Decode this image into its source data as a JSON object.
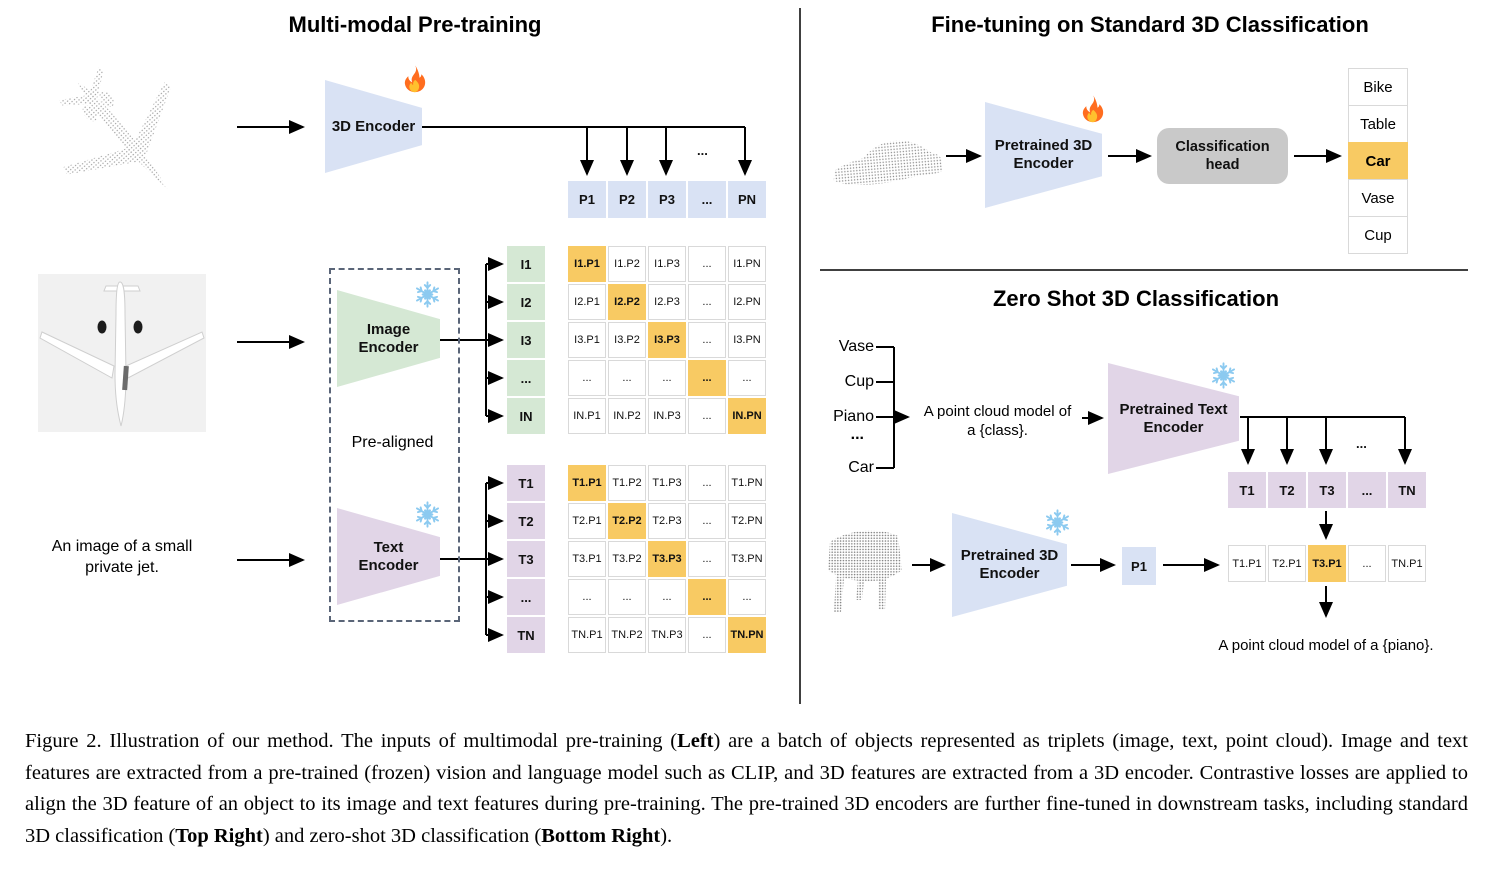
{
  "colors": {
    "blue": "#d9e2f4",
    "green": "#d5e8d4",
    "purple": "#e1d5e7",
    "orange": "#f8ca63",
    "head_gray": "#c9c9c9",
    "cell_border": "#d9d9d9",
    "fire": "#ff6d1f",
    "snowflake": "#8ccaf0",
    "line": "#000000"
  },
  "icons": {
    "fire": "fire-icon",
    "snowflake": "snowflake-icon"
  },
  "left": {
    "title": "Multi-modal Pre-training",
    "encoder_3d": [
      "3D Encoder"
    ],
    "image_encoder": [
      "Image",
      "Encoder"
    ],
    "text_encoder": [
      "Text",
      "Encoder"
    ],
    "prealigned": "Pre-aligned",
    "jet_caption": [
      "An image of a small",
      "private jet."
    ],
    "p_row": [
      "P1",
      "P2",
      "P3",
      "...",
      "PN"
    ],
    "i_col": [
      "I1",
      "I2",
      "I3",
      "...",
      "IN"
    ],
    "t_col": [
      "T1",
      "T2",
      "T3",
      "...",
      "TN"
    ],
    "i_matrix": [
      [
        "I1.P1",
        "I1.P2",
        "I1.P3",
        "...",
        "I1.PN"
      ],
      [
        "I2.P1",
        "I2.P2",
        "I2.P3",
        "...",
        "I2.PN"
      ],
      [
        "I3.P1",
        "I3.P2",
        "I3.P3",
        "...",
        "I3.PN"
      ],
      [
        "...",
        "...",
        "...",
        "...",
        "..."
      ],
      [
        "IN.P1",
        "IN.P2",
        "IN.P3",
        "...",
        "IN.PN"
      ]
    ],
    "t_matrix": [
      [
        "T1.P1",
        "T1.P2",
        "T1.P3",
        "...",
        "T1.PN"
      ],
      [
        "T2.P1",
        "T2.P2",
        "T2.P3",
        "...",
        "T2.PN"
      ],
      [
        "T3.P1",
        "T3.P2",
        "T3.P3",
        "...",
        "T3.PN"
      ],
      [
        "...",
        "...",
        "...",
        "...",
        "..."
      ],
      [
        "TN.P1",
        "TN.P2",
        "TN.P3",
        "...",
        "TN.PN"
      ]
    ],
    "branch_dots": "..."
  },
  "top_right": {
    "title": "Fine-tuning on Standard 3D Classification",
    "encoder": [
      "Pretrained 3D",
      "Encoder"
    ],
    "head": [
      "Classification",
      "head"
    ],
    "classes": [
      "Bike",
      "Table",
      "Car",
      "Vase",
      "Cup"
    ],
    "highlight_index": 2
  },
  "bottom_right": {
    "title": "Zero Shot 3D Classification",
    "class_list": [
      "Vase",
      "Cup",
      "Piano",
      "...",
      "Car"
    ],
    "prompt": [
      "A point cloud model of",
      "a {class}."
    ],
    "text_encoder": [
      "Pretrained Text",
      "Encoder"
    ],
    "encoder_3d": [
      "Pretrained 3D",
      "Encoder"
    ],
    "p1": "P1",
    "t_row": [
      "T1",
      "T2",
      "T3",
      "...",
      "TN"
    ],
    "tp_row": [
      "T1.P1",
      "T2.P1",
      "T3.P1",
      "...",
      "TN.P1"
    ],
    "tp_highlight_index": 2,
    "branch_dots": "...",
    "result": "A point cloud model of a {piano}."
  },
  "caption": {
    "segments": [
      {
        "t": "Figure 2. Illustration of our method. The inputs of multimodal pre-training (",
        "b": false
      },
      {
        "t": "Left",
        "b": true
      },
      {
        "t": ") are a batch of objects represented as triplets (image, text, point cloud). Image and text features are extracted from a pre-trained (frozen) vision and language model such as CLIP, and 3D features are extracted from a 3D encoder. Contrastive losses are applied to align the 3D feature of an object to its image and text features during pre-training. The pre-trained 3D encoders are further fine-tuned in downstream tasks, including standard 3D classification (",
        "b": false
      },
      {
        "t": "Top Right",
        "b": true
      },
      {
        "t": ") and zero-shot 3D classification (",
        "b": false
      },
      {
        "t": "Bottom Right",
        "b": true
      },
      {
        "t": ").",
        "b": false
      }
    ]
  }
}
